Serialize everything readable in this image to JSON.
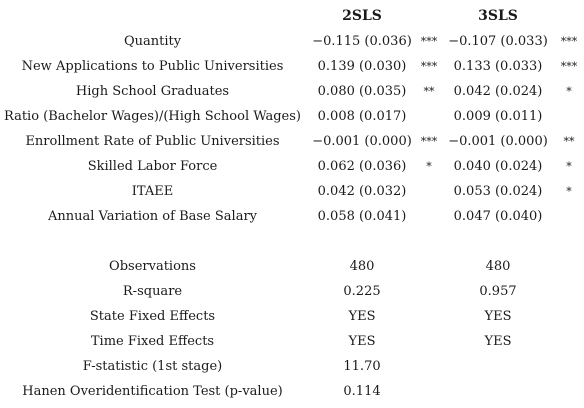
{
  "header": {
    "col1": "2SLS",
    "col2": "3SLS"
  },
  "rows": [
    {
      "label": "Quantity",
      "c1": "−0.115 (0.036)",
      "s1": "***",
      "c2": "−0.107 (0.033)",
      "s2": "***"
    },
    {
      "label": "New Applications to Public Universities",
      "c1": "0.139 (0.030)",
      "s1": "***",
      "c2": "0.133 (0.033)",
      "s2": "***"
    },
    {
      "label": "High School Graduates",
      "c1": "0.080 (0.035)",
      "s1": "**",
      "c2": "0.042 (0.024)",
      "s2": "*"
    },
    {
      "label": "Ratio (Bachelor Wages)/(High School Wages)",
      "c1": "0.008 (0.017)",
      "s1": "",
      "c2": "0.009 (0.011)",
      "s2": ""
    },
    {
      "label": "Enrollment Rate of Public Universities",
      "c1": "−0.001 (0.000)",
      "s1": "***",
      "c2": "−0.001 (0.000)",
      "s2": "**"
    },
    {
      "label": "Skilled Labor Force",
      "c1": "0.062 (0.036)",
      "s1": "*",
      "c2": "0.040 (0.024)",
      "s2": "*"
    },
    {
      "label": "ITAEE",
      "c1": "0.042 (0.032)",
      "s1": "",
      "c2": "0.053 (0.024)",
      "s2": "*"
    },
    {
      "label": "Annual Variation of Base Salary",
      "c1": "0.058 (0.041)",
      "s1": "",
      "c2": "0.047 (0.040)",
      "s2": ""
    }
  ],
  "stats": [
    {
      "label": "Observations",
      "c1": "480",
      "c2": "480"
    },
    {
      "label": "R-square",
      "c1": "0.225",
      "c2": "0.957"
    },
    {
      "label": "State Fixed Effects",
      "c1": "YES",
      "c2": "YES"
    },
    {
      "label": "Time Fixed Effects",
      "c1": "YES",
      "c2": "YES"
    },
    {
      "label": "F-statistic (1st stage)",
      "c1": "11.70",
      "c2": ""
    },
    {
      "label": "Hanen Overidentification Test (p-value)",
      "c1": "0.114",
      "c2": ""
    }
  ]
}
